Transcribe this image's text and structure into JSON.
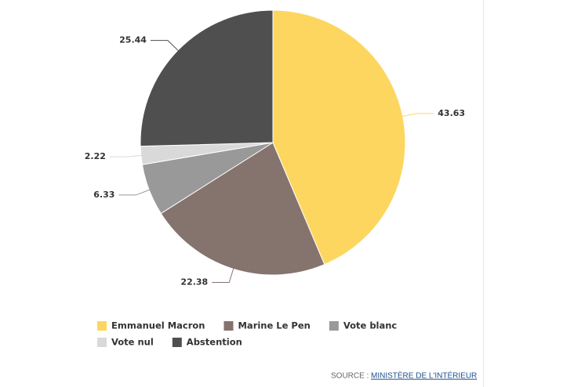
{
  "chart_data": {
    "type": "pie",
    "categories": [
      "Emmanuel Macron",
      "Marine Le Pen",
      "Vote blanc",
      "Vote nul",
      "Abstention"
    ],
    "values": [
      43.63,
      22.38,
      6.33,
      2.22,
      25.44
    ],
    "colors": [
      "#fdd660",
      "#85736e",
      "#999999",
      "#d9d9d9",
      "#4f4f4f"
    ],
    "legend": "bottom",
    "source_label": "SOURCE :",
    "source_link": "MINISTÈRE DE L'INTÉRIEUR"
  }
}
